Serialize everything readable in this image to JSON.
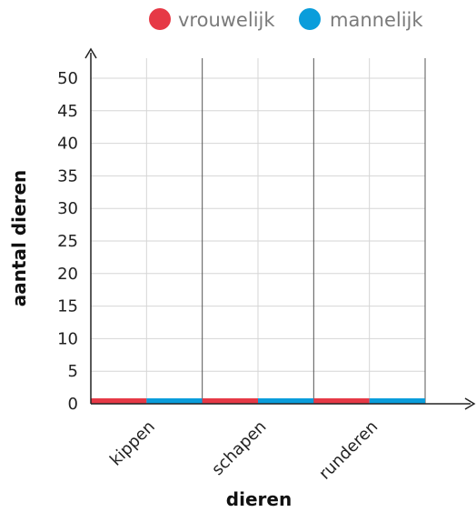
{
  "chart_data": {
    "type": "bar",
    "categories": [
      "kippen",
      "schapen",
      "runderen"
    ],
    "series": [
      {
        "name": "vrouwelijk",
        "color": "#e63946",
        "values": [
          0,
          0,
          0
        ]
      },
      {
        "name": "mannelijk",
        "color": "#0a9ddb",
        "values": [
          0,
          0,
          0
        ]
      }
    ],
    "xlabel": "dieren",
    "ylabel": "aantal dieren",
    "ylim": [
      0,
      50
    ],
    "yticks": [
      "0",
      "5",
      "10",
      "15",
      "20",
      "25",
      "30",
      "35",
      "40",
      "45",
      "50"
    ],
    "grid": true,
    "legend_position": "top"
  }
}
